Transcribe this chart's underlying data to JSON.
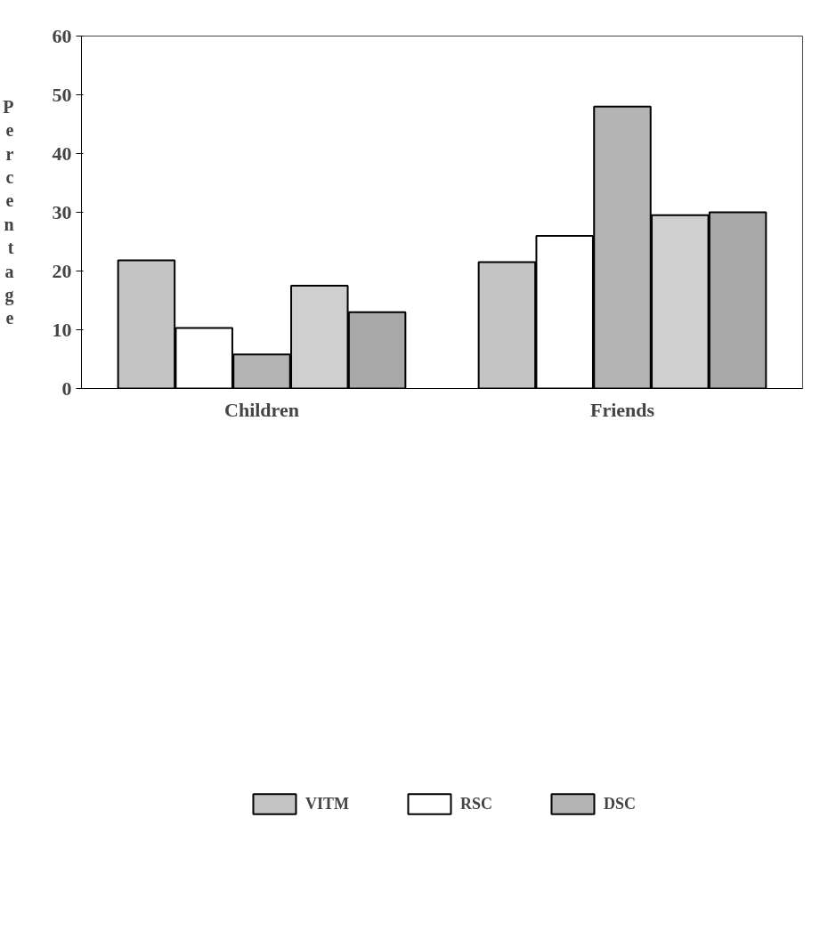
{
  "chart_data": {
    "type": "bar",
    "ylabel": "Percentage",
    "categories": [
      "Children",
      "Friends"
    ],
    "series": [
      {
        "name": "VITM",
        "color": "#c4c4c4",
        "values": [
          21.8,
          21.5
        ]
      },
      {
        "name": "RSC",
        "color": "#ffffff",
        "values": [
          10.3,
          26
        ]
      },
      {
        "name": "DSC",
        "color": "#b4b4b4",
        "values": [
          5.8,
          48
        ]
      },
      {
        "color": "#cfcfcf",
        "values": [
          17.5,
          29.5
        ]
      },
      {
        "color": "#a8a8a8",
        "values": [
          13,
          30
        ]
      }
    ],
    "ylim": [
      0,
      60
    ],
    "yticks": [
      0,
      10,
      20,
      30,
      40,
      50,
      60
    ],
    "grid": false,
    "legend": "bottom"
  }
}
